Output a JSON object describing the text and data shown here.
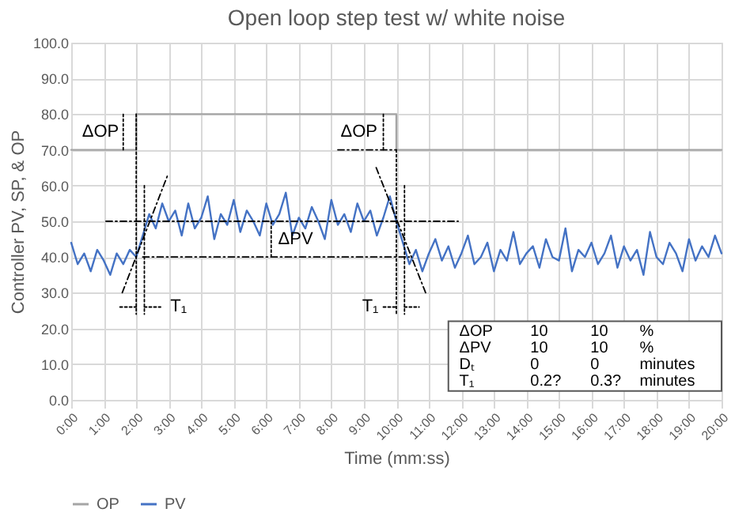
{
  "chart_data": {
    "type": "line",
    "title": "Open loop step test w/ white noise",
    "xlabel": "Time (mm:ss)",
    "ylabel": "Controller PV, SP, & OP",
    "x": [
      0,
      0.2,
      0.4,
      0.6,
      0.8,
      1,
      1.2,
      1.4,
      1.6,
      1.8,
      2,
      2.2,
      2.4,
      2.6,
      2.8,
      3,
      3.2,
      3.4,
      3.6,
      3.8,
      4,
      4.2,
      4.4,
      4.6,
      4.8,
      5,
      5.2,
      5.4,
      5.6,
      5.8,
      6,
      6.2,
      6.4,
      6.6,
      6.8,
      7,
      7.2,
      7.4,
      7.6,
      7.8,
      8,
      8.2,
      8.4,
      8.6,
      8.8,
      9,
      9.2,
      9.4,
      9.6,
      9.8,
      10,
      10.2,
      10.4,
      10.6,
      10.8,
      11,
      11.2,
      11.4,
      11.6,
      11.8,
      12,
      12.2,
      12.4,
      12.6,
      12.8,
      13,
      13.2,
      13.4,
      13.6,
      13.8,
      14,
      14.2,
      14.4,
      14.6,
      14.8,
      15,
      15.2,
      15.4,
      15.6,
      15.8,
      16,
      16.2,
      16.4,
      16.6,
      16.8,
      17,
      17.2,
      17.4,
      17.6,
      17.8,
      18,
      18.2,
      18.4,
      18.6,
      18.8,
      19,
      19.2,
      19.4,
      19.6,
      19.8,
      20
    ],
    "series": [
      {
        "name": "OP",
        "type": "step",
        "color": "#a5a5a5",
        "x": [
          0,
          2,
          10,
          20
        ],
        "values": [
          70,
          80,
          70,
          70
        ]
      },
      {
        "name": "PV",
        "color": "#4472c4",
        "values": [
          44,
          38,
          41,
          36,
          42,
          39,
          35,
          41,
          38,
          42,
          40,
          46,
          52,
          48,
          55,
          50,
          53,
          46,
          55,
          48,
          51,
          57,
          45,
          52,
          49,
          56,
          47,
          53,
          50,
          46,
          55,
          49,
          52,
          58,
          46,
          51,
          48,
          54,
          50,
          45,
          56,
          49,
          52,
          47,
          55,
          50,
          53,
          46,
          51,
          57,
          50,
          44,
          38,
          42,
          36,
          41,
          45,
          39,
          43,
          37,
          41,
          46,
          38,
          40,
          44,
          36,
          42,
          39,
          47,
          38,
          41,
          43,
          37,
          45,
          40,
          39,
          48,
          36,
          42,
          40,
          44,
          38,
          41,
          46,
          37,
          43,
          39,
          42,
          35,
          47,
          40,
          38,
          44,
          41,
          36,
          45,
          39,
          43,
          40,
          46,
          41
        ]
      },
      {
        "color": "#000000",
        "line_style": "dashed",
        "x": [
          1.07,
          11.9
        ],
        "values": [
          50,
          50
        ]
      },
      {
        "color": "#000000",
        "line_style": "dashed",
        "x": [
          2.2,
          10.4
        ],
        "values": [
          40,
          40
        ]
      },
      {
        "color": "#000000",
        "line_style": "dashed",
        "x": [
          8.2,
          10
        ],
        "values": [
          70,
          70
        ]
      },
      {
        "color": "#000000",
        "line_style": "dashed",
        "x": [
          1.57,
          2.97
        ],
        "values": [
          30,
          63
        ]
      },
      {
        "color": "#000000",
        "line_style": "dashed",
        "x": [
          9.38,
          10.9
        ],
        "values": [
          65,
          30
        ]
      },
      {
        "color": "#000000",
        "line_style": "dotted",
        "x": [
          2,
          2
        ],
        "values": [
          80,
          24
        ]
      },
      {
        "color": "#000000",
        "line_style": "dotted",
        "x": [
          2.25,
          2.25
        ],
        "values": [
          60,
          24
        ]
      },
      {
        "color": "#000000",
        "line_style": "dotted",
        "x": [
          10,
          10
        ],
        "values": [
          70,
          24
        ]
      },
      {
        "color": "#000000",
        "line_style": "dotted",
        "x": [
          10.25,
          10.25
        ],
        "values": [
          60,
          24
        ]
      },
      {
        "color": "#000000",
        "line_style": "dotted",
        "x": [
          1.6,
          1.6
        ],
        "values": [
          70,
          80
        ]
      },
      {
        "color": "#000000",
        "line_style": "dotted",
        "x": [
          9.6,
          9.6
        ],
        "values": [
          70,
          80
        ]
      },
      {
        "color": "#000000",
        "line_style": "dotted",
        "x": [
          6.15,
          6.15
        ],
        "values": [
          40,
          50
        ]
      },
      {
        "color": "#000000",
        "line_style": "dotted",
        "x": [
          1.5,
          2
        ],
        "values": [
          26,
          26
        ]
      },
      {
        "color": "#000000",
        "line_style": "dotted",
        "x": [
          2.25,
          2.75
        ],
        "values": [
          26,
          26
        ]
      },
      {
        "color": "#000000",
        "line_style": "dotted",
        "x": [
          9.6,
          10
        ],
        "values": [
          26,
          26
        ]
      },
      {
        "color": "#000000",
        "line_style": "dotted",
        "x": [
          10.25,
          10.7
        ],
        "values": [
          26,
          26
        ]
      }
    ],
    "annotations": [
      "ΔOP",
      "ΔOP",
      {
        "text": "ΔPV",
        "x": 6.9,
        "y": 45
      },
      "T₁",
      "T₁",
      "ΔOP 10 10 %",
      "ΔPV 10 10 %",
      "Dₜ 0 0 minutes",
      "T₁ 0.2? 0.3? minutes"
    ],
    "xlim": [
      0,
      20
    ],
    "xticks": [
      {
        "value": 0,
        "label": "0:00"
      },
      {
        "value": 1,
        "label": "1:00"
      },
      {
        "value": 2,
        "label": "2:00"
      },
      {
        "value": 3,
        "label": "3:00"
      },
      {
        "value": 4,
        "label": "4:00"
      },
      {
        "value": 5,
        "label": "5:00"
      },
      {
        "value": 6,
        "label": "6:00"
      },
      {
        "value": 7,
        "label": "7:00"
      },
      {
        "value": 8,
        "label": "8:00"
      },
      {
        "value": 9,
        "label": "9:00"
      },
      {
        "value": 10,
        "label": "10:00"
      },
      {
        "value": 11,
        "label": "11:00"
      },
      {
        "value": 12,
        "label": "12:00"
      },
      {
        "value": 13,
        "label": "13:00"
      },
      {
        "value": 14,
        "label": "14:00"
      },
      {
        "value": 15,
        "label": "15:00"
      },
      {
        "value": 16,
        "label": "16:00"
      },
      {
        "value": 17,
        "label": "17:00"
      },
      {
        "value": 18,
        "label": "18:00"
      },
      {
        "value": 19,
        "label": "19:00"
      },
      {
        "value": 20,
        "label": "20:00"
      }
    ],
    "ylim": [
      0,
      100
    ],
    "yticks": [
      {
        "value": 0,
        "label": "0.0"
      },
      {
        "value": 10,
        "label": "10.0"
      },
      {
        "value": 20,
        "label": "20.0"
      },
      {
        "value": 30,
        "label": "30.0"
      },
      {
        "value": 40,
        "label": "40.0"
      },
      {
        "value": 50,
        "label": "50.0"
      },
      {
        "value": 60,
        "label": "60.0"
      },
      {
        "value": 70,
        "label": "70.0"
      },
      {
        "value": 80,
        "label": "80.0"
      },
      {
        "value": 90,
        "label": "90.0"
      },
      {
        "value": 100,
        "label": "100.0"
      }
    ],
    "grid": true,
    "legend": "bottom"
  }
}
